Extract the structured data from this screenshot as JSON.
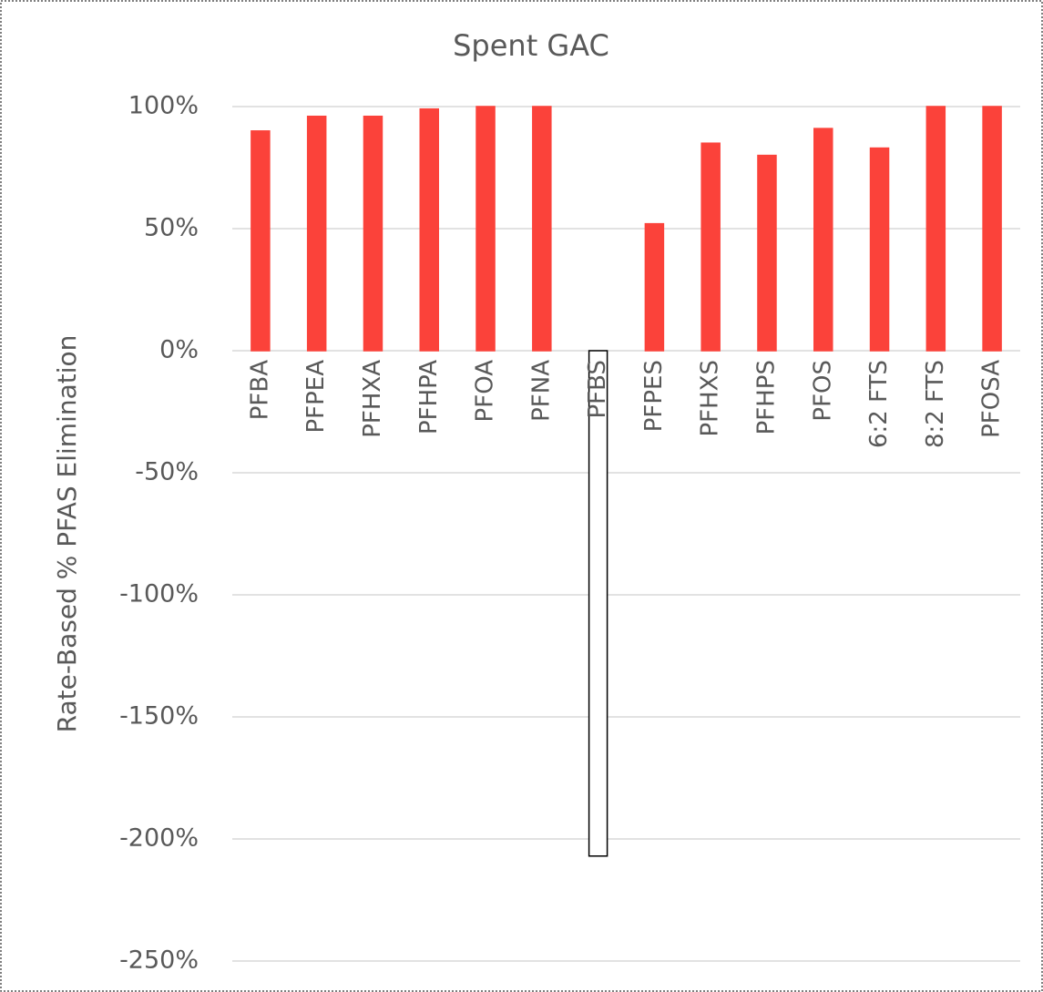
{
  "chart_data": {
    "type": "bar",
    "title": "Spent GAC",
    "y_label": "Rate-Based % PFAS Elimination",
    "categories": [
      "PFBA",
      "PFPEA",
      "PFHXA",
      "PFHPA",
      "PFOA",
      "PFNA",
      "PFBS",
      "PFPES",
      "PFHXS",
      "PFHPS",
      "PFOS",
      "6:2 FTS",
      "8:2 FTS",
      "PFOSA"
    ],
    "values": [
      90,
      96,
      96,
      99,
      100,
      100,
      -207,
      52,
      85,
      80,
      91,
      83,
      100,
      100
    ],
    "colors": [
      "#fb423a",
      "#fb423a",
      "#fb423a",
      "#fb423a",
      "#fb423a",
      "#fb423a",
      "#ffffff",
      "#fb423a",
      "#fb423a",
      "#fb423a",
      "#fb423a",
      "#fb423a",
      "#fb423a",
      "#fb423a"
    ],
    "edgecolors": [
      "#fb423a",
      "#fb423a",
      "#fb423a",
      "#fb423a",
      "#fb423a",
      "#fb423a",
      "#000000",
      "#fb423a",
      "#fb423a",
      "#fb423a",
      "#fb423a",
      "#fb423a",
      "#fb423a",
      "#fb423a"
    ],
    "ylim": [
      -250,
      100
    ],
    "yticks": [
      {
        "value": -250,
        "label": "-250%"
      },
      {
        "value": -200,
        "label": "-200%"
      },
      {
        "value": -150,
        "label": "-150%"
      },
      {
        "value": -100,
        "label": "-100%"
      },
      {
        "value": -50,
        "label": "-50%"
      },
      {
        "value": 0,
        "label": "0%"
      },
      {
        "value": 50,
        "label": "50%"
      },
      {
        "value": 100,
        "label": "100%"
      }
    ],
    "grid": true
  }
}
